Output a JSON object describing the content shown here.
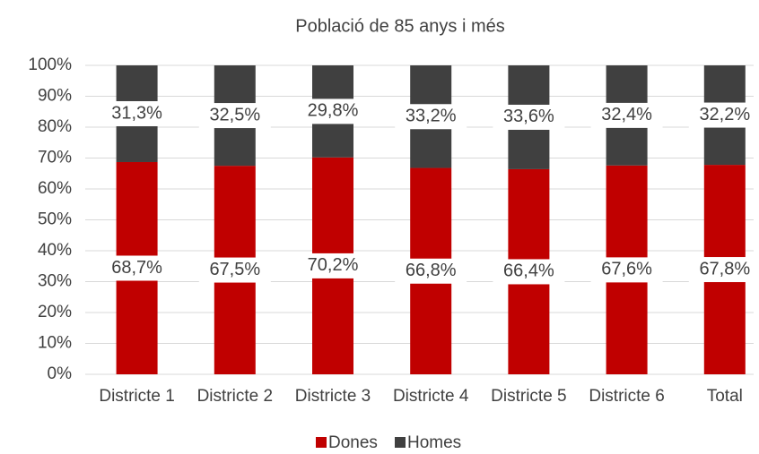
{
  "chart_data": {
    "type": "stacked_bar",
    "title": "Població de 85 anys i més",
    "categories": [
      "Districte 1",
      "Districte 2",
      "Districte 3",
      "Districte 4",
      "Districte 5",
      "Districte 6",
      "Total"
    ],
    "series": [
      {
        "name": "Dones",
        "color": "#c00000",
        "values": [
          68.7,
          67.5,
          70.2,
          66.8,
          66.4,
          67.6,
          67.8
        ],
        "value_labels": [
          "68,7%",
          "67,5%",
          "70,2%",
          "66,8%",
          "66,4%",
          "67,6%",
          "67,8%"
        ]
      },
      {
        "name": "Homes",
        "color": "#404040",
        "values": [
          31.3,
          32.5,
          29.8,
          33.2,
          33.6,
          32.4,
          32.2
        ],
        "value_labels": [
          "31,3%",
          "32,5%",
          "29,8%",
          "33,2%",
          "33,6%",
          "32,4%",
          "32,2%"
        ]
      }
    ],
    "ylim": [
      0,
      100
    ],
    "yticks": [
      {
        "value": 0,
        "label": "0%"
      },
      {
        "value": 10,
        "label": "10%"
      },
      {
        "value": 20,
        "label": "20%"
      },
      {
        "value": 30,
        "label": "30%"
      },
      {
        "value": 40,
        "label": "40%"
      },
      {
        "value": 50,
        "label": "50%"
      },
      {
        "value": 60,
        "label": "60%"
      },
      {
        "value": 70,
        "label": "70%"
      },
      {
        "value": 80,
        "label": "80%"
      },
      {
        "value": 90,
        "label": "90%"
      },
      {
        "value": 100,
        "label": "100%"
      }
    ],
    "grid": true,
    "legend": "bottom"
  }
}
